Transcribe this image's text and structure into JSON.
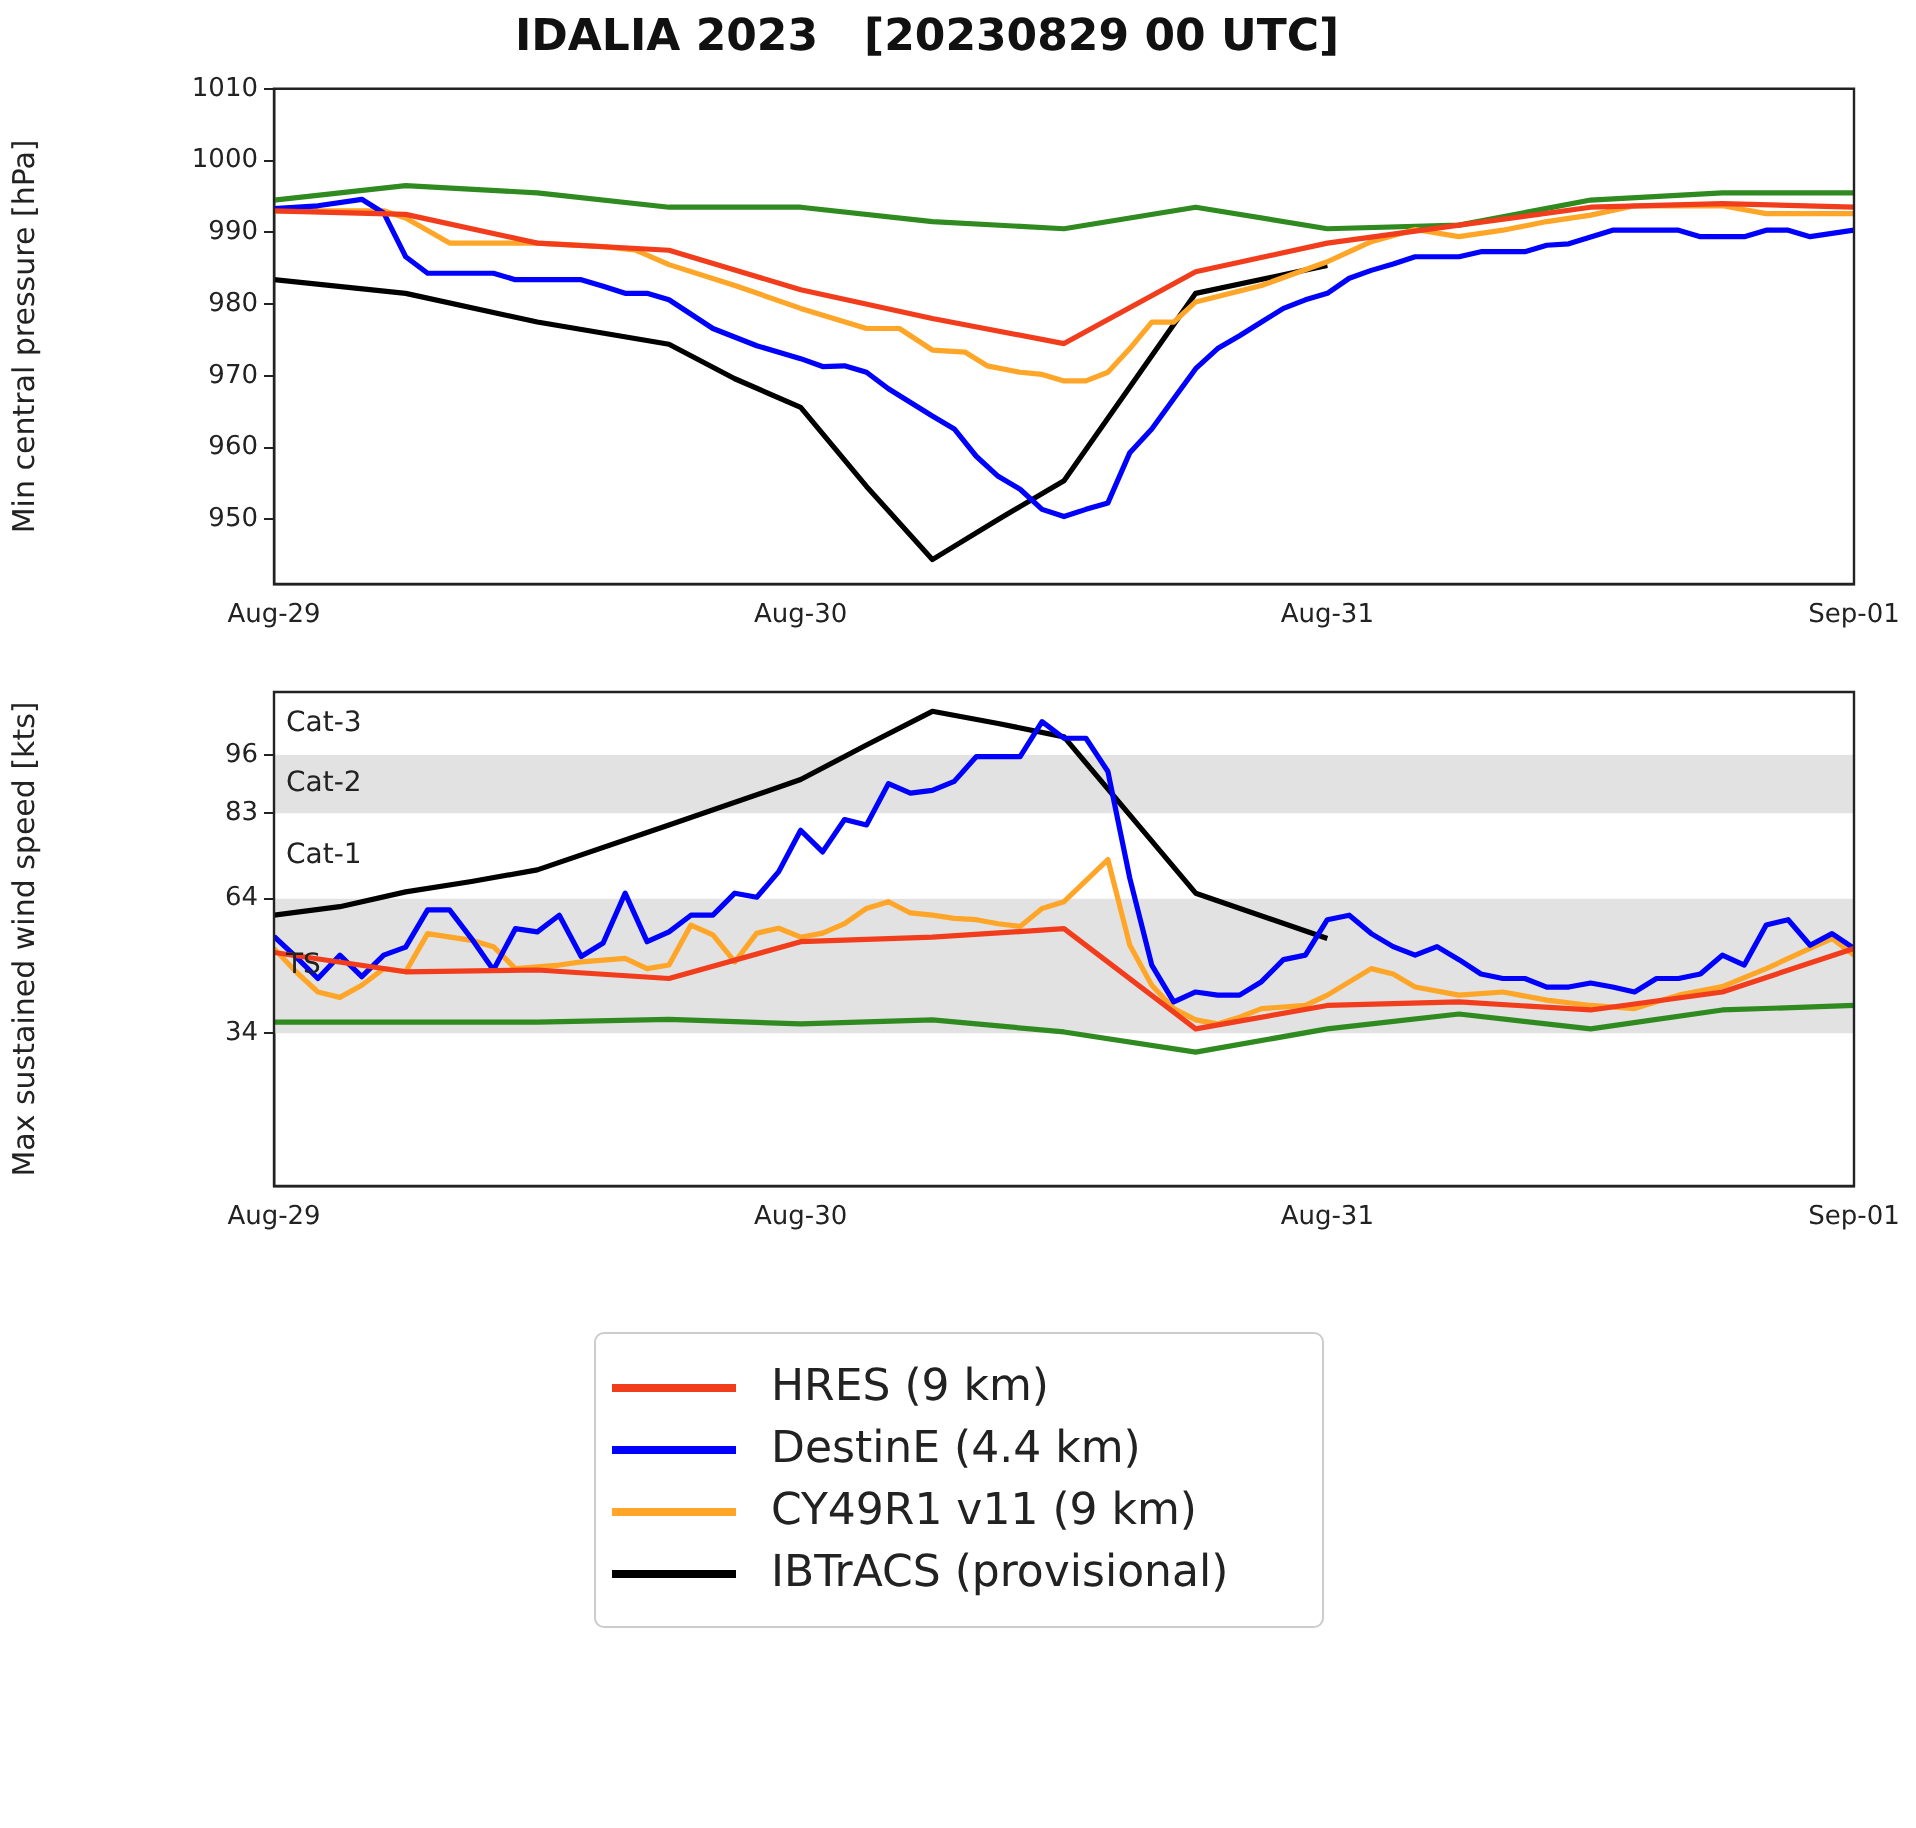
{
  "chart_data": [
    {
      "type": "line",
      "title": "IDALIA 2023   [20230829 00 UTC]",
      "ylabel": "Min central pressure [hPa]",
      "xlim": [
        "2023-08-29",
        "2023-09-01"
      ],
      "xticks": [
        {
          "value": "2023-08-29",
          "label": "Aug-29"
        },
        {
          "value": "2023-08-30",
          "label": "Aug-30"
        },
        {
          "value": "2023-08-31",
          "label": "Aug-31"
        },
        {
          "value": "2023-09-01",
          "label": "Sep-01"
        }
      ],
      "ylim": [
        941,
        1010
      ],
      "yticks": [
        950,
        960,
        970,
        980,
        990,
        1000,
        1010
      ],
      "series": [
        {
          "color": "#f23d1d",
          "x": [
            "2023-08-29T00:00",
            "2023-08-29T06:00",
            "2023-08-29T12:00",
            "2023-08-29T18:00",
            "2023-08-30T00:00",
            "2023-08-30T06:00",
            "2023-08-30T12:00",
            "2023-08-30T18:00",
            "2023-08-31T00:00",
            "2023-08-31T06:00",
            "2023-08-31T12:00",
            "2023-08-31T18:00",
            "2023-09-01T00:00"
          ],
          "values": [
            993,
            992.5,
            988.5,
            987.5,
            982,
            978,
            974.5,
            984.5,
            988.5,
            991,
            993.5,
            994,
            993.5
          ]
        },
        {
          "color": "#0000ff",
          "x": [
            "2023-08-29T00:00",
            "2023-08-29T02:00",
            "2023-08-29T04:00",
            "2023-08-29T05:00",
            "2023-08-29T06:00",
            "2023-08-29T07:00",
            "2023-08-29T10:00",
            "2023-08-29T11:00",
            "2023-08-29T14:00",
            "2023-08-29T15:00",
            "2023-08-29T16:00",
            "2023-08-29T17:00",
            "2023-08-29T18:00",
            "2023-08-29T20:00",
            "2023-08-29T22:00",
            "2023-08-30T00:00",
            "2023-08-30T01:00",
            "2023-08-30T02:00",
            "2023-08-30T03:00",
            "2023-08-30T04:00",
            "2023-08-30T06:00",
            "2023-08-30T07:00",
            "2023-08-30T08:00",
            "2023-08-30T09:00",
            "2023-08-30T10:00",
            "2023-08-30T11:00",
            "2023-08-30T12:00",
            "2023-08-30T13:00",
            "2023-08-30T14:00",
            "2023-08-30T15:00",
            "2023-08-30T16:00",
            "2023-08-30T17:00",
            "2023-08-30T18:00",
            "2023-08-30T19:00",
            "2023-08-30T20:00",
            "2023-08-30T21:00",
            "2023-08-30T22:00",
            "2023-08-30T23:00",
            "2023-08-31T00:00",
            "2023-08-31T01:00",
            "2023-08-31T02:00",
            "2023-08-31T03:00",
            "2023-08-31T04:00",
            "2023-08-31T06:00",
            "2023-08-31T07:00",
            "2023-08-31T09:00",
            "2023-08-31T10:00",
            "2023-08-31T11:00",
            "2023-08-31T13:00",
            "2023-08-31T16:00",
            "2023-08-31T17:00",
            "2023-08-31T19:00",
            "2023-08-31T20:00",
            "2023-08-31T21:00",
            "2023-08-31T22:00",
            "2023-09-01T00:00"
          ],
          "values": [
            993.3,
            993.7,
            994.6,
            992.7,
            986.6,
            984.3,
            984.3,
            983.4,
            983.4,
            982.5,
            981.5,
            981.5,
            980.6,
            976.6,
            974.2,
            972.4,
            971.3,
            971.4,
            970.5,
            968.2,
            964.4,
            962.6,
            958.8,
            956,
            954.2,
            951.4,
            950.4,
            951.4,
            952.3,
            959.3,
            962.6,
            966.8,
            971,
            973.8,
            975.6,
            977.5,
            979.4,
            980.6,
            981.5,
            983.6,
            984.7,
            985.6,
            986.6,
            986.6,
            987.3,
            987.3,
            988.2,
            988.4,
            990.3,
            990.3,
            989.4,
            989.4,
            990.3,
            990.3,
            989.4,
            990.3
          ]
        },
        {
          "color": "#ffa629",
          "x": [
            "2023-08-29T00:00",
            "2023-08-29T03:00",
            "2023-08-29T05:00",
            "2023-08-29T06:00",
            "2023-08-29T08:00",
            "2023-08-29T12:00",
            "2023-08-29T15:00",
            "2023-08-29T16:30",
            "2023-08-29T18:00",
            "2023-08-29T21:00",
            "2023-08-30T00:00",
            "2023-08-30T03:00",
            "2023-08-30T04:30",
            "2023-08-30T06:00",
            "2023-08-30T07:30",
            "2023-08-30T08:30",
            "2023-08-30T10:00",
            "2023-08-30T11:00",
            "2023-08-30T12:00",
            "2023-08-30T13:00",
            "2023-08-30T14:00",
            "2023-08-30T15:00",
            "2023-08-30T16:00",
            "2023-08-30T17:00",
            "2023-08-30T18:00",
            "2023-08-30T21:00",
            "2023-08-31T00:00",
            "2023-08-31T02:00",
            "2023-08-31T04:00",
            "2023-08-31T06:00",
            "2023-08-31T08:00",
            "2023-08-31T10:00",
            "2023-08-31T12:00",
            "2023-08-31T14:00",
            "2023-08-31T18:00",
            "2023-08-31T20:00",
            "2023-09-01T00:00"
          ],
          "values": [
            993,
            993,
            993,
            992,
            988.5,
            988.5,
            988,
            987.5,
            985.5,
            982.6,
            979.4,
            976.6,
            976.6,
            973.6,
            973.3,
            971.4,
            970.5,
            970.2,
            969.3,
            969.3,
            970.5,
            973.8,
            977.5,
            977.5,
            980.3,
            982.6,
            985.9,
            988.7,
            990.4,
            989.4,
            990.3,
            991.5,
            992.4,
            993.7,
            993.7,
            992.6,
            992.6
          ]
        },
        {
          "color": "#2f8a1f",
          "x": [
            "2023-08-29T00:00",
            "2023-08-29T06:00",
            "2023-08-29T12:00",
            "2023-08-29T18:00",
            "2023-08-30T00:00",
            "2023-08-30T06:00",
            "2023-08-30T12:00",
            "2023-08-30T18:00",
            "2023-08-31T00:00",
            "2023-08-31T06:00",
            "2023-08-31T12:00",
            "2023-08-31T18:00",
            "2023-09-01T00:00"
          ],
          "values": [
            994.5,
            996.5,
            995.5,
            993.5,
            993.5,
            991.5,
            990.5,
            993.5,
            990.5,
            991,
            994.5,
            995.5,
            995.5
          ]
        },
        {
          "color": "#000000",
          "x": [
            "2023-08-29T00:00",
            "2023-08-29T06:00",
            "2023-08-29T12:00",
            "2023-08-29T18:00",
            "2023-08-29T21:00",
            "2023-08-30T00:00",
            "2023-08-30T03:00",
            "2023-08-30T06:00",
            "2023-08-30T09:00",
            "2023-08-30T12:00",
            "2023-08-30T18:00",
            "2023-08-31T00:00"
          ],
          "values": [
            983.4,
            981.5,
            977.5,
            974.4,
            969.6,
            965.6,
            954.6,
            944.4,
            950,
            955.4,
            981.5,
            985.4
          ]
        }
      ]
    },
    {
      "type": "line",
      "ylabel": "Max sustained wind speed [kts]",
      "legend": "bottom",
      "xlim": [
        "2023-08-29",
        "2023-09-01"
      ],
      "xticks": [
        {
          "value": "2023-08-29",
          "label": "Aug-29"
        },
        {
          "value": "2023-08-30",
          "label": "Aug-30"
        },
        {
          "value": "2023-08-31",
          "label": "Aug-31"
        },
        {
          "value": "2023-09-01",
          "label": "Sep-01"
        }
      ],
      "ylim": [
        0,
        110
      ],
      "yticks": [
        34,
        64,
        83,
        96
      ],
      "bands": [
        {
          "axis": "y",
          "from": 34,
          "to": 64,
          "label": "TS",
          "color": "#e2e2e2"
        },
        {
          "axis": "y",
          "from": 64,
          "to": 83,
          "label": "Cat-1",
          "color": "#ffffff"
        },
        {
          "axis": "y",
          "from": 83,
          "to": 96,
          "label": "Cat-2",
          "color": "#e2e2e2"
        },
        {
          "axis": "y",
          "from": 96,
          "to": 110,
          "label": "Cat-3",
          "color": "#ffffff"
        }
      ],
      "series": [
        {
          "name": "HRES (9 km)",
          "color": "#f23d1d",
          "x": [
            "2023-08-29T00:00",
            "2023-08-29T06:00",
            "2023-08-29T12:00",
            "2023-08-29T18:00",
            "2023-08-30T00:00",
            "2023-08-30T06:00",
            "2023-08-30T12:00",
            "2023-08-30T18:00",
            "2023-08-31T00:00",
            "2023-08-31T06:00",
            "2023-08-31T12:00",
            "2023-08-31T18:00",
            "2023-09-01T00:00"
          ],
          "values": [
            52,
            47.7,
            48.1,
            46.2,
            54.4,
            55.4,
            57.3,
            35,
            40.2,
            41,
            39.2,
            43.2,
            52.9
          ]
        },
        {
          "name": "DestinE (4.4 km)",
          "color": "#0000ff",
          "x": [
            "2023-08-29T00:00",
            "2023-08-29T01:00",
            "2023-08-29T02:00",
            "2023-08-29T03:00",
            "2023-08-29T04:00",
            "2023-08-29T05:00",
            "2023-08-29T06:00",
            "2023-08-29T07:00",
            "2023-08-29T08:00",
            "2023-08-29T09:00",
            "2023-08-29T10:00",
            "2023-08-29T11:00",
            "2023-08-29T12:00",
            "2023-08-29T13:00",
            "2023-08-29T14:00",
            "2023-08-29T15:00",
            "2023-08-29T16:00",
            "2023-08-29T17:00",
            "2023-08-29T18:00",
            "2023-08-29T19:00",
            "2023-08-29T20:00",
            "2023-08-29T21:00",
            "2023-08-29T22:00",
            "2023-08-29T23:00",
            "2023-08-30T00:00",
            "2023-08-30T01:00",
            "2023-08-30T02:00",
            "2023-08-30T03:00",
            "2023-08-30T04:00",
            "2023-08-30T05:00",
            "2023-08-30T06:00",
            "2023-08-30T07:00",
            "2023-08-30T08:00",
            "2023-08-30T09:00",
            "2023-08-30T10:00",
            "2023-08-30T11:00",
            "2023-08-30T12:00",
            "2023-08-30T13:00",
            "2023-08-30T14:00",
            "2023-08-30T15:00",
            "2023-08-30T16:00",
            "2023-08-30T17:00",
            "2023-08-30T18:00",
            "2023-08-30T19:00",
            "2023-08-30T20:00",
            "2023-08-30T21:00",
            "2023-08-30T22:00",
            "2023-08-30T23:00",
            "2023-08-31T00:00",
            "2023-08-31T01:00",
            "2023-08-31T02:00",
            "2023-08-31T03:00",
            "2023-08-31T04:00",
            "2023-08-31T05:00",
            "2023-08-31T06:00",
            "2023-08-31T07:00",
            "2023-08-31T08:00",
            "2023-08-31T09:00",
            "2023-08-31T10:00",
            "2023-08-31T11:00",
            "2023-08-31T12:00",
            "2023-08-31T13:00",
            "2023-08-31T14:00",
            "2023-08-31T15:00",
            "2023-08-31T16:00",
            "2023-08-31T17:00",
            "2023-08-31T18:00",
            "2023-08-31T19:00",
            "2023-08-31T20:00",
            "2023-08-31T21:00",
            "2023-08-31T22:00",
            "2023-08-31T23:00",
            "2023-09-01T00:00"
          ],
          "values": [
            55.6,
            51,
            46.2,
            51.4,
            46.6,
            51.4,
            53.2,
            61.5,
            61.5,
            55.1,
            48.1,
            57.3,
            56.6,
            60.3,
            51.1,
            54.1,
            65.2,
            54.4,
            56.6,
            60.3,
            60.3,
            65.2,
            64.3,
            70,
            79.2,
            74.4,
            81.6,
            80.4,
            89.6,
            87.5,
            88.1,
            90.1,
            95.6,
            95.6,
            95.6,
            103.4,
            99.7,
            99.7,
            92.3,
            68.5,
            49.2,
            41,
            43.2,
            42.5,
            42.5,
            45.5,
            50.4,
            51.4,
            59.3,
            60.3,
            56.2,
            53.3,
            51.4,
            53.3,
            50.4,
            47.2,
            46.2,
            46.2,
            44.3,
            44.3,
            45.2,
            44.3,
            43.2,
            46.2,
            46.2,
            47.2,
            51.4,
            49.2,
            58.1,
            59.3,
            53.6,
            56.2,
            52.9
          ]
        },
        {
          "name": "CY49R1 v11 (9 km)",
          "color": "#ffa629",
          "x": [
            "2023-08-29T00:00",
            "2023-08-29T01:00",
            "2023-08-29T02:00",
            "2023-08-29T03:00",
            "2023-08-29T04:00",
            "2023-08-29T05:00",
            "2023-08-29T06:00",
            "2023-08-29T07:00",
            "2023-08-29T09:00",
            "2023-08-29T10:00",
            "2023-08-29T11:00",
            "2023-08-29T13:00",
            "2023-08-29T14:00",
            "2023-08-29T16:00",
            "2023-08-29T17:00",
            "2023-08-29T18:00",
            "2023-08-29T19:00",
            "2023-08-29T20:00",
            "2023-08-29T21:00",
            "2023-08-29T22:00",
            "2023-08-29T23:00",
            "2023-08-30T00:00",
            "2023-08-30T01:00",
            "2023-08-30T02:00",
            "2023-08-30T03:00",
            "2023-08-30T04:00",
            "2023-08-30T05:00",
            "2023-08-30T06:00",
            "2023-08-30T07:00",
            "2023-08-30T08:00",
            "2023-08-30T09:00",
            "2023-08-30T10:00",
            "2023-08-30T11:00",
            "2023-08-30T12:00",
            "2023-08-30T14:00",
            "2023-08-30T15:00",
            "2023-08-30T16:00",
            "2023-08-30T17:00",
            "2023-08-30T18:00",
            "2023-08-30T19:00",
            "2023-08-30T20:00",
            "2023-08-30T21:00",
            "2023-08-30T23:00",
            "2023-08-31T00:00",
            "2023-08-31T02:00",
            "2023-08-31T03:00",
            "2023-08-31T04:00",
            "2023-08-31T06:00",
            "2023-08-31T08:00",
            "2023-08-31T10:00",
            "2023-08-31T12:00",
            "2023-08-31T14:00",
            "2023-08-31T16:00",
            "2023-08-31T18:00",
            "2023-08-31T20:00",
            "2023-08-31T22:00",
            "2023-08-31T23:00",
            "2023-09-01T00:00"
          ],
          "values": [
            52.9,
            47.7,
            43.2,
            42,
            44.7,
            48.4,
            47.7,
            56.2,
            54.7,
            53.3,
            48.4,
            49.2,
            49.9,
            50.7,
            48.4,
            49.2,
            58.1,
            55.9,
            49.9,
            56.3,
            57.4,
            55.4,
            56.3,
            58.4,
            61.8,
            63.3,
            60.8,
            60.3,
            59.6,
            59.3,
            58.4,
            57.8,
            61.8,
            63.3,
            72.7,
            53.6,
            44.7,
            39.5,
            37,
            36.1,
            37.6,
            39.5,
            40.2,
            42.5,
            48.4,
            47.2,
            44.3,
            42.5,
            43.2,
            41.4,
            40.2,
            39.5,
            42.5,
            44.4,
            48.4,
            52.9,
            55.1,
            51.4
          ]
        },
        {
          "color": "#2f8a1f",
          "x": [
            "2023-08-29T00:00",
            "2023-08-29T12:00",
            "2023-08-29T18:00",
            "2023-08-30T00:00",
            "2023-08-30T06:00",
            "2023-08-30T12:00",
            "2023-08-30T18:00",
            "2023-08-31T00:00",
            "2023-08-31T06:00",
            "2023-08-31T12:00",
            "2023-08-31T18:00",
            "2023-09-01T00:00"
          ],
          "values": [
            36.5,
            36.5,
            37.1,
            36.1,
            37,
            34.3,
            29.8,
            35,
            38.3,
            35,
            39.2,
            40.2
          ]
        },
        {
          "name": "IBTrACS (provisional)",
          "color": "#000000",
          "x": [
            "2023-08-29T00:00",
            "2023-08-29T03:00",
            "2023-08-29T06:00",
            "2023-08-29T09:00",
            "2023-08-29T12:00",
            "2023-08-29T18:00",
            "2023-08-30T00:00",
            "2023-08-30T03:00",
            "2023-08-30T06:00",
            "2023-08-30T09:00",
            "2023-08-30T12:00",
            "2023-08-30T18:00",
            "2023-08-31T00:00"
          ],
          "values": [
            60.3,
            62.2,
            65.5,
            67.8,
            70.4,
            80.4,
            90.5,
            98.2,
            105.7,
            103,
            100,
            65.2,
            55.1
          ]
        }
      ]
    }
  ]
}
